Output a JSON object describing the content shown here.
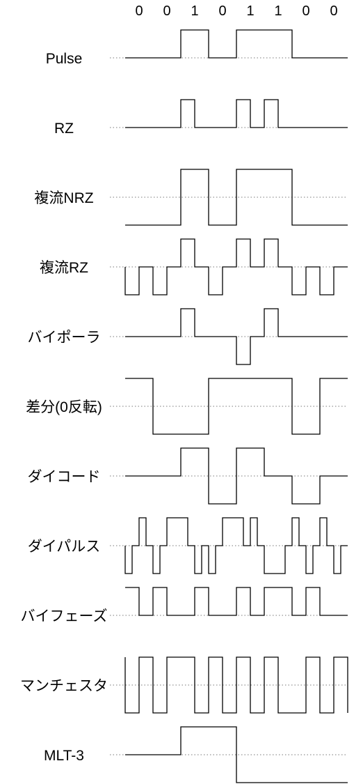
{
  "bits": [
    "0",
    "0",
    "1",
    "0",
    "1",
    "1",
    "0",
    "0"
  ],
  "rows": [
    {
      "label": "Pulse",
      "kind": "unipolar",
      "segments": [
        [
          0,
          0
        ],
        [
          2,
          1
        ],
        [
          3,
          0
        ],
        [
          4,
          1
        ],
        [
          6,
          0
        ],
        [
          8,
          0
        ]
      ]
    },
    {
      "label": "RZ",
      "kind": "unipolar",
      "segments": [
        [
          0,
          0
        ],
        [
          2,
          1
        ],
        [
          2.5,
          0
        ],
        [
          4,
          1
        ],
        [
          4.5,
          0
        ],
        [
          5,
          1
        ],
        [
          5.5,
          0
        ],
        [
          8,
          0
        ]
      ]
    },
    {
      "label": "複流NRZ",
      "kind": "bipolar",
      "segments": [
        [
          0,
          -1
        ],
        [
          2,
          1
        ],
        [
          3,
          -1
        ],
        [
          4,
          1
        ],
        [
          6,
          -1
        ],
        [
          8,
          -1
        ]
      ]
    },
    {
      "label": "複流RZ",
      "kind": "bipolar",
      "segments": [
        [
          0,
          0
        ],
        [
          0,
          -1
        ],
        [
          0.5,
          0
        ],
        [
          1,
          -1
        ],
        [
          1.5,
          0
        ],
        [
          2,
          1
        ],
        [
          2.5,
          0
        ],
        [
          3,
          -1
        ],
        [
          3.5,
          0
        ],
        [
          4,
          1
        ],
        [
          4.5,
          0
        ],
        [
          5,
          1
        ],
        [
          5.5,
          0
        ],
        [
          6,
          -1
        ],
        [
          6.5,
          0
        ],
        [
          7,
          -1
        ],
        [
          7.5,
          0
        ],
        [
          8,
          0
        ]
      ]
    },
    {
      "label": "バイポーラ",
      "kind": "bipolar",
      "segments": [
        [
          0,
          0
        ],
        [
          2,
          1
        ],
        [
          2.5,
          0
        ],
        [
          4,
          -1
        ],
        [
          4.5,
          0
        ],
        [
          5,
          1
        ],
        [
          5.5,
          0
        ],
        [
          8,
          0
        ]
      ]
    },
    {
      "label": "差分(0反転)",
      "kind": "bipolar",
      "segments": [
        [
          0,
          1
        ],
        [
          1,
          -1
        ],
        [
          3,
          1
        ],
        [
          6,
          -1
        ],
        [
          7,
          1
        ],
        [
          8,
          1
        ]
      ]
    },
    {
      "label": "ダイコード",
      "kind": "bipolar",
      "segments": [
        [
          0,
          0
        ],
        [
          2,
          1
        ],
        [
          3,
          -1
        ],
        [
          4,
          1
        ],
        [
          5,
          0
        ],
        [
          6,
          -1
        ],
        [
          7,
          0
        ],
        [
          8,
          0
        ]
      ]
    },
    {
      "label": "ダイパルス",
      "kind": "bipolar",
      "segments": [
        [
          0,
          0
        ],
        [
          0,
          -1
        ],
        [
          0.25,
          0
        ],
        [
          0.5,
          1
        ],
        [
          0.75,
          0
        ],
        [
          1,
          -1
        ],
        [
          1.25,
          0
        ],
        [
          1.5,
          1
        ],
        [
          1.75,
          1
        ],
        [
          2,
          1
        ],
        [
          2.25,
          0
        ],
        [
          2.5,
          -1
        ],
        [
          2.75,
          0
        ],
        [
          3,
          -1
        ],
        [
          3.25,
          0
        ],
        [
          3.5,
          1
        ],
        [
          3.75,
          1
        ],
        [
          4,
          1
        ],
        [
          4.25,
          0
        ],
        [
          4.5,
          1
        ],
        [
          4.75,
          0
        ],
        [
          5,
          -1
        ],
        [
          5.25,
          -1
        ],
        [
          5.5,
          -1
        ],
        [
          5.75,
          0
        ],
        [
          6,
          1
        ],
        [
          6.25,
          0
        ],
        [
          6.5,
          -1
        ],
        [
          6.75,
          0
        ],
        [
          7,
          1
        ],
        [
          7.25,
          0
        ],
        [
          7.5,
          -1
        ],
        [
          7.75,
          0
        ],
        [
          8,
          0
        ]
      ]
    },
    {
      "label": "バイフェーズ",
      "kind": "unipolar",
      "segments": [
        [
          0,
          1
        ],
        [
          0.5,
          0
        ],
        [
          1,
          1
        ],
        [
          1.5,
          0
        ],
        [
          2,
          0
        ],
        [
          2.5,
          1
        ],
        [
          3,
          0
        ],
        [
          3.5,
          0
        ],
        [
          4,
          1
        ],
        [
          4.5,
          0
        ],
        [
          5,
          1
        ],
        [
          5.5,
          1
        ],
        [
          6,
          0
        ],
        [
          6.5,
          1
        ],
        [
          7,
          0
        ],
        [
          7.5,
          0
        ],
        [
          8,
          0
        ]
      ]
    },
    {
      "label": "マンチェスタ",
      "kind": "bipolar",
      "segments": [
        [
          0,
          1
        ],
        [
          0,
          -1
        ],
        [
          0.5,
          1
        ],
        [
          1,
          -1
        ],
        [
          1.5,
          1
        ],
        [
          2,
          1
        ],
        [
          2.5,
          -1
        ],
        [
          3,
          1
        ],
        [
          3.5,
          -1
        ],
        [
          4,
          1
        ],
        [
          4.5,
          -1
        ],
        [
          5,
          1
        ],
        [
          5.5,
          -1
        ],
        [
          6,
          -1
        ],
        [
          6.5,
          1
        ],
        [
          7,
          -1
        ],
        [
          7.5,
          1
        ],
        [
          8,
          -1
        ]
      ]
    },
    {
      "label": "MLT-3",
      "kind": "bipolar",
      "segments": [
        [
          0,
          0
        ],
        [
          2,
          1
        ],
        [
          4,
          -1
        ],
        [
          5,
          -1
        ],
        [
          8,
          -1
        ]
      ]
    }
  ]
}
